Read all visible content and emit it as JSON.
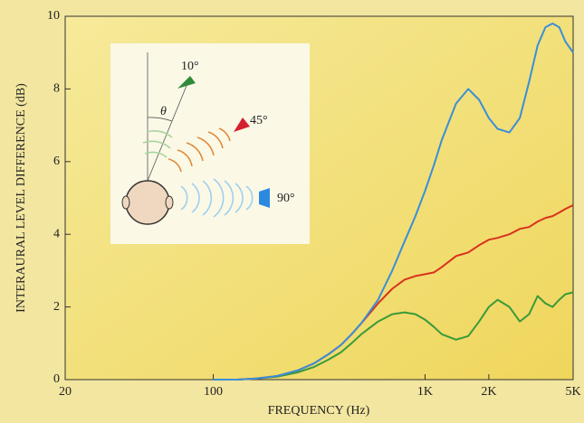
{
  "chart_data": {
    "type": "line",
    "x_label": "FREQUENCY (Hz)",
    "y_label": "INTERAURAL LEVEL DIFFERENCE (dB)",
    "annotation": "θ",
    "log_x": true,
    "xlim": [
      20,
      5000
    ],
    "xticks": [
      20,
      100,
      {
        "value": 1000,
        "label": "1K"
      },
      {
        "value": 2000,
        "label": "2K"
      },
      {
        "value": 5000,
        "label": "5K"
      }
    ],
    "ylim": [
      0,
      10
    ],
    "yticks": [
      0,
      2,
      4,
      6,
      8,
      10
    ],
    "x": [
      100,
      130,
      160,
      200,
      250,
      300,
      350,
      400,
      450,
      500,
      600,
      700,
      800,
      900,
      1000,
      1100,
      1200,
      1400,
      1600,
      1800,
      2000,
      2200,
      2500,
      2800,
      3100,
      3400,
      3700,
      4000,
      4300,
      4600,
      5000
    ],
    "series": [
      {
        "name": "10°",
        "color": "#3a9a3a",
        "values": [
          0,
          0,
          0.03,
          0.08,
          0.2,
          0.35,
          0.55,
          0.75,
          1.0,
          1.25,
          1.6,
          1.8,
          1.85,
          1.8,
          1.65,
          1.45,
          1.25,
          1.1,
          1.2,
          1.6,
          2.0,
          2.2,
          2.0,
          1.6,
          1.8,
          2.3,
          2.1,
          2.0,
          2.2,
          2.35,
          2.4
        ]
      },
      {
        "name": "45°",
        "color": "#d8321e",
        "values": [
          0,
          0,
          0.03,
          0.1,
          0.25,
          0.45,
          0.7,
          0.95,
          1.25,
          1.55,
          2.1,
          2.5,
          2.75,
          2.85,
          2.9,
          2.95,
          3.1,
          3.4,
          3.5,
          3.7,
          3.85,
          3.9,
          4.0,
          4.15,
          4.2,
          4.35,
          4.45,
          4.5,
          4.6,
          4.7,
          4.8
        ]
      },
      {
        "name": "90°",
        "color": "#3a8fd8",
        "values": [
          0,
          0,
          0.03,
          0.1,
          0.25,
          0.45,
          0.7,
          0.95,
          1.25,
          1.55,
          2.2,
          3.0,
          3.8,
          4.5,
          5.2,
          5.9,
          6.6,
          7.6,
          8.0,
          7.7,
          7.2,
          6.9,
          6.8,
          7.2,
          8.2,
          9.2,
          9.7,
          9.8,
          9.7,
          9.3,
          9.0
        ]
      }
    ]
  }
}
